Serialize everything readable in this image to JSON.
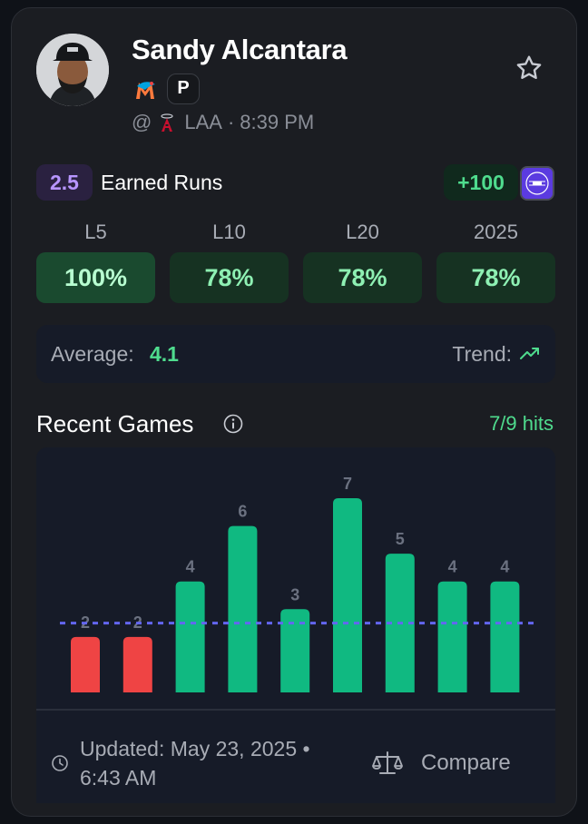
{
  "player": {
    "name": "Sandy Alcantara",
    "position": "P",
    "team_logo_icon": "marlins-logo-icon"
  },
  "game": {
    "at_symbol": "@",
    "opponent": "LAA",
    "separator": "·",
    "time": "8:39 PM",
    "opponent_logo_icon": "angels-logo-icon"
  },
  "prop": {
    "line": "2.5",
    "stat": "Earned Runs",
    "odds": "+100",
    "sportsbook_icon": "hard-rock-bet-logo-icon"
  },
  "splits": [
    {
      "label": "L5",
      "value": "100%"
    },
    {
      "label": "L10",
      "value": "78%"
    },
    {
      "label": "L20",
      "value": "78%"
    },
    {
      "label": "2025",
      "value": "78%"
    }
  ],
  "summary": {
    "average_label": "Average:",
    "average_value": "4.1",
    "trend_label": "Trend:",
    "trend_icon": "trending-up-icon"
  },
  "recent_games": {
    "title": "Recent Games",
    "hits": "7/9 hits"
  },
  "chart_data": {
    "type": "bar",
    "values": [
      2,
      2,
      4,
      6,
      3,
      7,
      5,
      4,
      4
    ],
    "threshold": 2.5,
    "ylim": [
      0,
      7
    ],
    "colors": {
      "over": "#10b981",
      "under": "#ef4444",
      "threshold": "#6366f1",
      "label": "#6b7180"
    }
  },
  "footer": {
    "updated": "Updated: May 23, 2025 • 6:43 AM",
    "compare_label": "Compare",
    "compare_icon": "scale-icon",
    "clock_icon": "clock-icon"
  },
  "colors": {
    "accent_green": "#4fdc8e",
    "accent_purple": "#b795ff",
    "card_bg": "#1b1d22"
  }
}
